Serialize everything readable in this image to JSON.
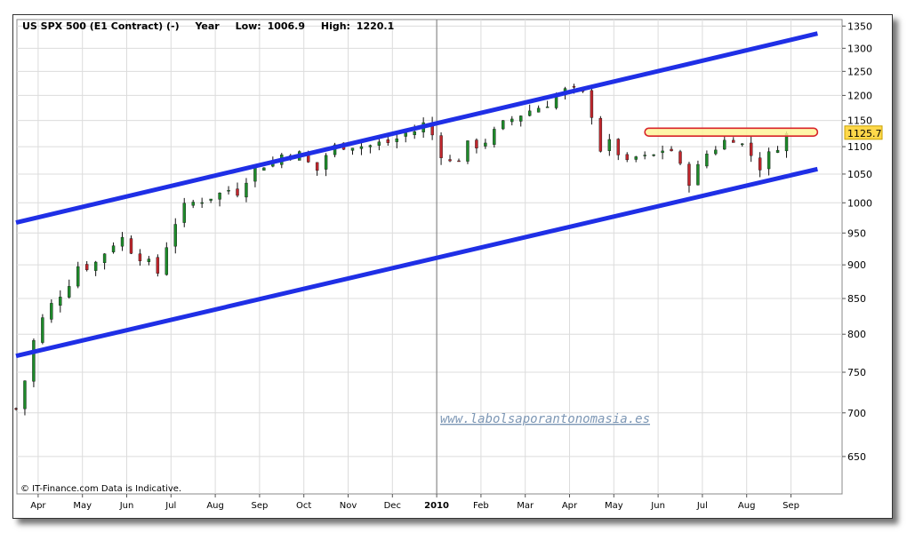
{
  "header": {
    "instrument": "US SPX 500 (E1 Contract) (-)",
    "period": "Year",
    "low_label": "Low:",
    "low_value": "1006.9",
    "high_label": "High:",
    "high_value": "1220.1"
  },
  "footer": {
    "copyright": "© IT-Finance.com Data is Indicative."
  },
  "watermark": "www.labolsaporantonomasia.es",
  "last_price_label": "1125.7",
  "colors": {
    "channel": "#1f2fe6",
    "up_candle": "#1d8a2a",
    "down_candle": "#c0262c",
    "wick": "#111111",
    "resistance_fill": "#fff59a",
    "resistance_border": "#d8232a",
    "grid": "#dcdcdc",
    "last_label_bg": "#ffd84a"
  },
  "chart_data": {
    "type": "candlestick",
    "x_axis": {
      "labels": [
        "Apr",
        "May",
        "Jun",
        "Jul",
        "Aug",
        "Sep",
        "Oct",
        "Nov",
        "Dec",
        "2010",
        "Feb",
        "Mar",
        "Apr",
        "May",
        "Jun",
        "Jul",
        "Aug",
        "Sep"
      ],
      "bold_labels": [
        "2010"
      ],
      "divider_at": "2010"
    },
    "y_axis": {
      "scale": "log",
      "ticks": [
        650,
        700,
        750,
        800,
        850,
        900,
        950,
        1000,
        1050,
        1100,
        1150,
        1200,
        1250,
        1300,
        1350
      ],
      "range": [
        610,
        1365
      ],
      "side": "right"
    },
    "grid": true,
    "price_path": [
      [
        0,
        705
      ],
      [
        0.05,
        680
      ],
      [
        0.15,
        720
      ],
      [
        0.25,
        760
      ],
      [
        0.4,
        790
      ],
      [
        0.6,
        820
      ],
      [
        0.9,
        850
      ],
      [
        1.2,
        875
      ],
      [
        1.45,
        905
      ],
      [
        1.7,
        895
      ],
      [
        2.0,
        920
      ],
      [
        2.2,
        935
      ],
      [
        2.35,
        945
      ],
      [
        2.6,
        925
      ],
      [
        2.8,
        915
      ],
      [
        3.0,
        900
      ],
      [
        3.15,
        880
      ],
      [
        3.3,
        905
      ],
      [
        3.45,
        945
      ],
      [
        3.7,
        985
      ],
      [
        4.0,
        1000
      ],
      [
        4.3,
        1010
      ],
      [
        4.6,
        1015
      ],
      [
        4.75,
        1025
      ],
      [
        4.95,
        1015
      ],
      [
        5.2,
        1045
      ],
      [
        5.45,
        1060
      ],
      [
        5.7,
        1075
      ],
      [
        5.9,
        1065
      ],
      [
        6.0,
        1085
      ],
      [
        6.3,
        1090
      ],
      [
        6.55,
        1075
      ],
      [
        6.75,
        1050
      ],
      [
        7.0,
        1085
      ],
      [
        7.3,
        1105
      ],
      [
        7.6,
        1105
      ],
      [
        7.9,
        1100
      ],
      [
        8.2,
        1105
      ],
      [
        8.5,
        1110
      ],
      [
        8.8,
        1125
      ],
      [
        9.0,
        1130
      ],
      [
        9.25,
        1145
      ],
      [
        9.35,
        1130
      ],
      [
        9.6,
        1090
      ],
      [
        9.85,
        1065
      ],
      [
        10.0,
        1080
      ],
      [
        10.25,
        1105
      ],
      [
        10.5,
        1105
      ],
      [
        10.8,
        1125
      ],
      [
        11.0,
        1140
      ],
      [
        11.3,
        1160
      ],
      [
        11.6,
        1170
      ],
      [
        11.9,
        1180
      ],
      [
        12.2,
        1200
      ],
      [
        12.45,
        1210
      ],
      [
        12.7,
        1205
      ],
      [
        12.9,
        1195
      ],
      [
        13.05,
        1150
      ],
      [
        13.15,
        1100
      ],
      [
        13.3,
        1090
      ],
      [
        13.45,
        1110
      ],
      [
        13.6,
        1090
      ],
      [
        13.8,
        1065
      ],
      [
        14.0,
        1080
      ],
      [
        14.3,
        1075
      ],
      [
        14.5,
        1090
      ],
      [
        14.7,
        1100
      ],
      [
        14.85,
        1090
      ],
      [
        15.0,
        1060
      ],
      [
        15.1,
        1040
      ],
      [
        15.3,
        1040
      ],
      [
        15.5,
        1080
      ],
      [
        15.7,
        1095
      ],
      [
        16.0,
        1110
      ],
      [
        16.2,
        1120
      ],
      [
        16.3,
        1110
      ],
      [
        16.5,
        1095
      ],
      [
        16.7,
        1075
      ],
      [
        16.85,
        1060
      ],
      [
        16.95,
        1070
      ],
      [
        17.05,
        1095
      ],
      [
        17.2,
        1105
      ],
      [
        17.35,
        1120
      ],
      [
        17.5,
        1125
      ]
    ],
    "channel_upper": {
      "start": [
        0,
        967
      ],
      "end": [
        18.1,
        1333
      ]
    },
    "channel_lower": {
      "start": [
        0,
        771
      ],
      "end": [
        18.1,
        1059
      ]
    },
    "resistance_zone": {
      "from_x": 14.2,
      "to_x": 18.1,
      "low": 1120,
      "high": 1135
    },
    "last_value": 1125.7
  }
}
